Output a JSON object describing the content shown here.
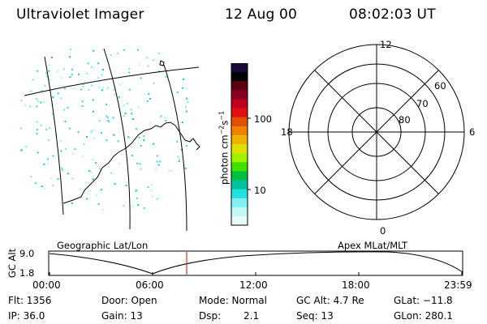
{
  "header": {
    "title": "Ultraviolet Imager",
    "date": "12 Aug 00",
    "time": "08:02:03 UT"
  },
  "colorbar": {
    "label": "photon cm-2s-1",
    "ticks": [
      "100",
      "10"
    ],
    "colors": [
      "#1a0a3a",
      "#000000",
      "#5a0010",
      "#8a0020",
      "#c00020",
      "#e01010",
      "#e05000",
      "#f08000",
      "#f0b000",
      "#e0e000",
      "#a0f000",
      "#40e000",
      "#00c040",
      "#00c0a0",
      "#20e0e0",
      "#80f0f0",
      "#c0f8f8",
      "#e8f8f8"
    ]
  },
  "polar_plot": {
    "mlt_labels": [
      "12",
      "18",
      "6",
      "0"
    ],
    "lat_labels": [
      "60",
      "70",
      "80"
    ]
  },
  "timeline": {
    "left_title": "Geographic Lat/Lon",
    "right_title": "Apex MLat/MLT",
    "ylabel": "GC Alt",
    "y_ticks": [
      "9.0",
      "1.8"
    ],
    "x_ticks": [
      "00:00",
      "06:00",
      "12:00",
      "18:00",
      "23:59"
    ],
    "current_marker_color": "#e00000"
  },
  "footer": {
    "flt": "Flt: 1356",
    "ip": "IP: 36.0",
    "door": "Door: Open",
    "gain": "Gain: 13",
    "mode": "Mode: Normal",
    "dsp_label": "Dsp:",
    "dsp_value": "2.1",
    "gcalt": "GC Alt: 4.7 Re",
    "seq": "Seq: 13",
    "glat": "GLat: −11.8",
    "glon": "GLon: 280.1"
  }
}
